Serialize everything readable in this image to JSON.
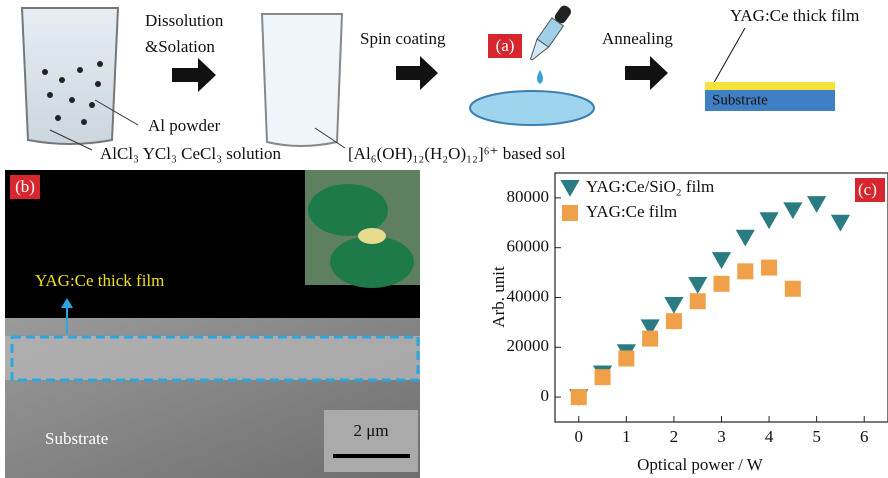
{
  "panel_a": {
    "label": "(a)",
    "step1": [
      "Dissolution",
      "&Solation"
    ],
    "step2": "Spin coating",
    "step3": "Annealing",
    "film_label": "YAG:Ce thick film",
    "substrate_label": "Substrate",
    "powder_label": "Al powder",
    "solution_label": "AlCl₃ YCl₃ CeCl₃  solution",
    "sol_label": "[Al₆(OH)₁₂(H₂O)₁₂]⁶⁺ based sol"
  },
  "panel_b": {
    "label": "(b)",
    "film_label": "YAG:Ce thick film",
    "substrate_label": "Substrate",
    "scale_bar": "2 μm"
  },
  "chart_data": {
    "type": "scatter",
    "panel_label": "(c)",
    "xlabel": "Optical power / W",
    "ylabel": "Arb. unit",
    "xlim": [
      -0.5,
      6.5
    ],
    "ylim": [
      -10000,
      90000
    ],
    "xticks": [
      0,
      1,
      2,
      3,
      4,
      5,
      6
    ],
    "yticks": [
      0,
      20000,
      40000,
      60000,
      80000
    ],
    "legend": "upper-left",
    "series": [
      {
        "name": "YAG:Ce/SiO₂ film",
        "color": "#2b7c82",
        "marker": "triangle-down",
        "x": [
          0,
          0.5,
          1,
          1.5,
          2,
          2.5,
          3,
          3.5,
          4,
          4.5,
          5,
          5.5
        ],
        "values": [
          0,
          9500,
          18000,
          28000,
          37000,
          45000,
          55000,
          64000,
          71000,
          75000,
          77500,
          70000
        ]
      },
      {
        "name": "YAG:Ce film",
        "color": "#f0a048",
        "marker": "square",
        "x": [
          0,
          0.5,
          1,
          1.5,
          2,
          2.5,
          3,
          3.5,
          4,
          4.5
        ],
        "values": [
          0,
          8000,
          15500,
          23500,
          30500,
          38500,
          45500,
          50500,
          52000,
          43500
        ]
      }
    ]
  }
}
